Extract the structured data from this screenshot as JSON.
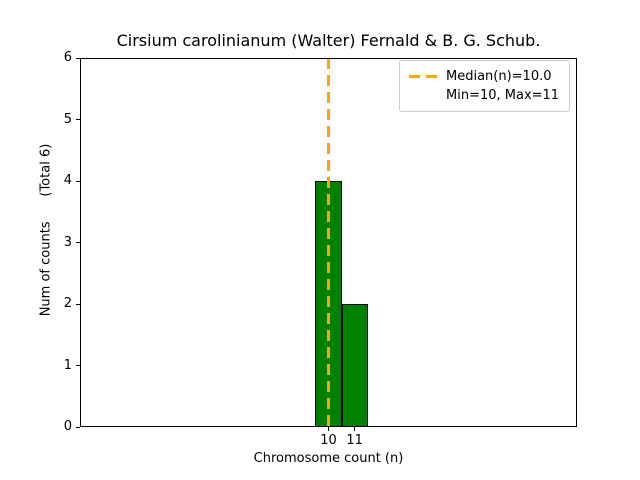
{
  "figure": {
    "background": "#ffffff"
  },
  "chart_data": {
    "type": "bar",
    "title": "Cirsium carolinianum (Walter) Fernald & B. G. Schub.",
    "xlabel": "Chromosome count (n)",
    "ylabel": "Num of counts      (Total 6)",
    "categories": [
      10,
      11
    ],
    "values": [
      4,
      2
    ],
    "total": 6,
    "median": 10.0,
    "min": 10,
    "max": 11,
    "xlim": [
      0.5,
      19.5
    ],
    "ylim": [
      0,
      6
    ],
    "yticks": [
      0,
      1,
      2,
      3,
      4,
      5,
      6
    ],
    "xticks": [
      10,
      11
    ],
    "bar_width": 1,
    "grid": false,
    "legend_position": "upper-right",
    "legend": [
      "Median(n)=10.0",
      "Min=10, Max=11"
    ],
    "colors": {
      "bar_fill": "#008000",
      "bar_edge": "#000000",
      "median_line": "#ffa500",
      "axis": "#000000",
      "legend_border": "#cccccc",
      "text": "#000000"
    }
  }
}
